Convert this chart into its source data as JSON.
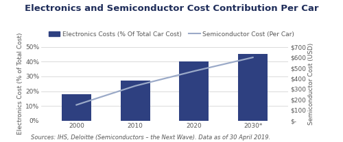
{
  "title": "Electronics and Semiconductor Cost Contribution Per Car",
  "categories": [
    "2000",
    "2010",
    "2020",
    "2030*"
  ],
  "bar_values": [
    18,
    27,
    40,
    45
  ],
  "bar_color": "#2E4080",
  "line_values": [
    150,
    330,
    470,
    600
  ],
  "line_color": "#9BAAC8",
  "ylim_left": [
    0,
    50
  ],
  "ylim_right": [
    0,
    700
  ],
  "yticks_left": [
    0,
    10,
    20,
    30,
    40,
    50
  ],
  "ytick_labels_left": [
    "0%",
    "10%",
    "20%",
    "30%",
    "40%",
    "50%"
  ],
  "yticks_right": [
    0,
    100,
    200,
    300,
    400,
    500,
    600,
    700
  ],
  "ytick_labels_right": [
    "$-",
    "$100",
    "$200",
    "$300",
    "$400",
    "$500",
    "$600",
    "$700"
  ],
  "ylabel_left": "Electronics Cost (% of Total Cost)",
  "ylabel_right": "Semiconductor Cost (USD)",
  "legend_bar": "Electronics Costs (% Of Total Car Cost)",
  "legend_line": "Semiconductor Cost (Per Car)",
  "source_text": "Sources: IHS, Deloitte (Semiconductors – the Next Wave). Data as of 30 April 2019.",
  "background_color": "#FFFFFF",
  "grid_color": "#CCCCCC",
  "title_fontsize": 9.5,
  "axis_fontsize": 6.5,
  "legend_fontsize": 6.5,
  "source_fontsize": 6.0,
  "title_color": "#1F2D5A",
  "label_color": "#555555"
}
